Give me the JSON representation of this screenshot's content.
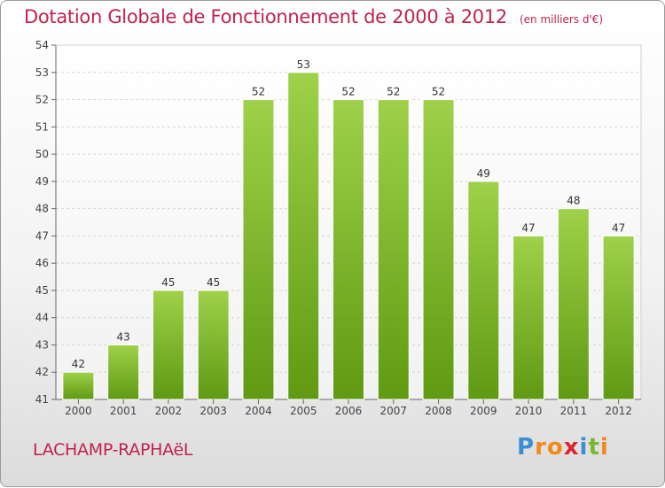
{
  "chart_data": {
    "type": "bar",
    "title": "Dotation Globale de Fonctionnement de 2000 à 2012",
    "subtitle": "(en milliers d'€)",
    "categories": [
      "2000",
      "2001",
      "2002",
      "2003",
      "2004",
      "2005",
      "2006",
      "2007",
      "2008",
      "2009",
      "2010",
      "2011",
      "2012"
    ],
    "values": [
      42,
      43,
      45,
      45,
      52,
      53,
      52,
      52,
      52,
      49,
      47,
      48,
      47
    ],
    "ylim": [
      41,
      54
    ],
    "yticks": [
      41,
      42,
      43,
      44,
      45,
      46,
      47,
      48,
      49,
      50,
      51,
      52,
      53,
      54
    ],
    "grid": "horizontal",
    "bar_color": "#7fbc2a"
  },
  "commune": "LACHAMP-RAPHAëL",
  "logo": {
    "letters": [
      "P",
      "r",
      "o",
      "x",
      "i",
      "t",
      "i"
    ],
    "colors": [
      "#3a8fd4",
      "#f08a1c",
      "#f08a1c",
      "#d9262c",
      "#3a8fd4",
      "#7ab62e",
      "#f08a1c"
    ]
  }
}
